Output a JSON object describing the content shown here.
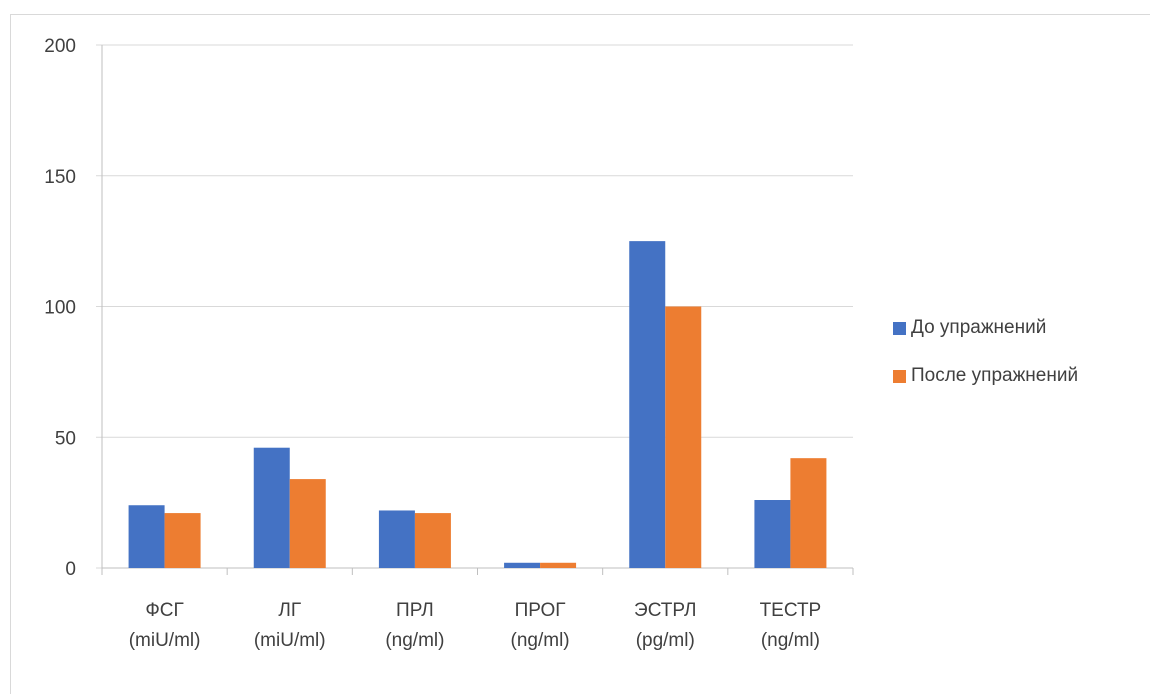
{
  "chart_data": {
    "type": "bar",
    "title": "",
    "xlabel": "",
    "ylabel": "",
    "ylim": [
      0,
      200
    ],
    "yticks": [
      0,
      50,
      100,
      150,
      200
    ],
    "grid": true,
    "legend_position": "right",
    "categories": [
      [
        "ФСГ",
        "(miU/ml)"
      ],
      [
        "ЛГ",
        "(miU/ml)"
      ],
      [
        "ПРЛ",
        "(ng/ml)"
      ],
      [
        "ПРОГ",
        "(ng/ml)"
      ],
      [
        "ЭСТРЛ",
        "(pg/ml)"
      ],
      [
        "ТЕСТР",
        "(ng/ml)"
      ]
    ],
    "series": [
      {
        "name": "До упражнений",
        "color": "#4472c4",
        "values": [
          24,
          46,
          22,
          2,
          125,
          26
        ]
      },
      {
        "name": "После упражнений",
        "color": "#ed7d31",
        "values": [
          21,
          34,
          21,
          2,
          100,
          42
        ]
      }
    ]
  }
}
